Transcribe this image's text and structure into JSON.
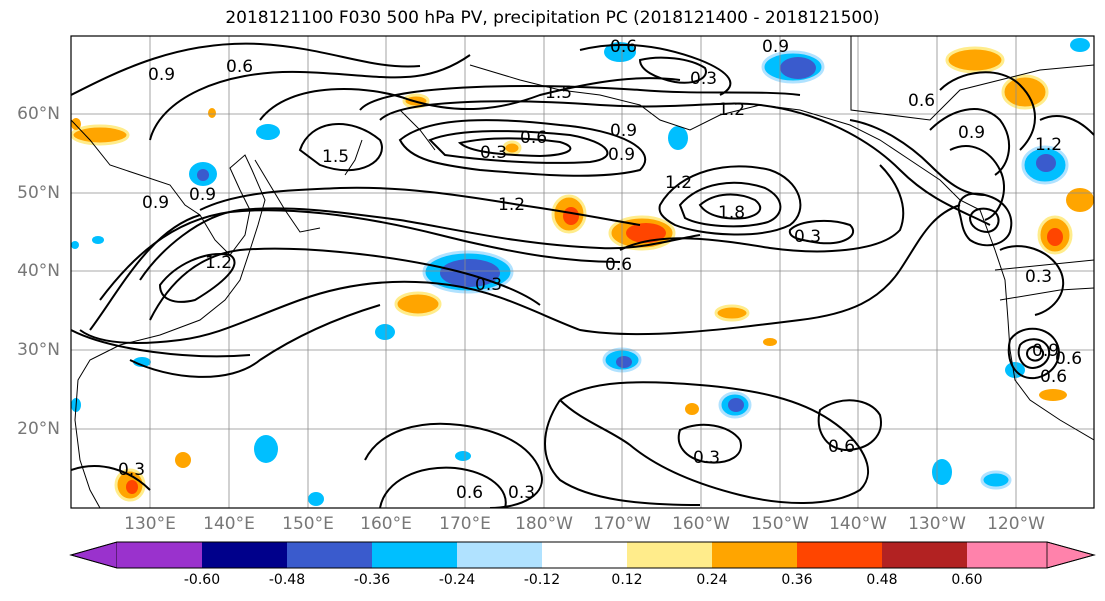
{
  "title": "2018121100 F030 500 hPa PV, precipitation PC (2018121400 - 2018121500)",
  "lat_ticks": [
    "60°N",
    "50°N",
    "40°N",
    "30°N",
    "20°N"
  ],
  "lon_ticks": [
    "130°E",
    "140°E",
    "150°E",
    "160°E",
    "170°E",
    "180°W",
    "170°W",
    "160°W",
    "150°W",
    "140°W",
    "130°W",
    "120°W"
  ],
  "contour_labels": [
    "0.9",
    "0.6",
    "1.5",
    "1.5",
    "0.3",
    "0.6",
    "0.9",
    "1.2",
    "1.2",
    "1.8",
    "0.3",
    "0.6",
    "0.3",
    "0.9",
    "1.2",
    "0.6",
    "0.9",
    "1.2",
    "0.3",
    "0.6",
    "0.3",
    "0.6",
    "0.3",
    "0.6",
    "0.9",
    "0.9",
    "1.2",
    "0.6",
    "0.3",
    "0.3",
    "0.9",
    "0.9",
    "0.6"
  ],
  "colorbar": {
    "labels": [
      "-0.60",
      "-0.48",
      "-0.36",
      "-0.24",
      "-0.12",
      "0.12",
      "0.24",
      "0.36",
      "0.48",
      "0.60"
    ],
    "colors": [
      "#9a32cd",
      "#00008b",
      "#3a5bcd",
      "#00bfff",
      "#b0e2ff",
      "#ffffff",
      "#ffec8b",
      "#ffa500",
      "#ff4500",
      "#b22222",
      "#ff82ab"
    ]
  }
}
